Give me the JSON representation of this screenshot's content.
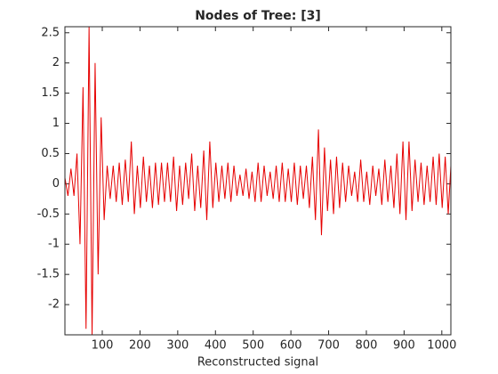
{
  "chart_data": {
    "type": "line",
    "title": "Nodes of Tree: [3]",
    "x_label": "Reconstructed signal",
    "color": "#e60000",
    "xlim": [
      1,
      1024
    ],
    "ylim": [
      -2.5,
      2.6
    ],
    "xticks": [
      100,
      200,
      300,
      400,
      500,
      600,
      700,
      800,
      900,
      1000
    ],
    "yticks": [
      -2,
      -1.5,
      -1,
      -0.5,
      0,
      0.5,
      1,
      1.5,
      2,
      2.5
    ],
    "grid": false,
    "x": [
      1,
      9,
      17,
      25,
      33,
      41,
      49,
      57,
      65,
      73,
      81,
      89,
      97,
      105,
      113,
      121,
      129,
      137,
      145,
      153,
      161,
      169,
      177,
      185,
      193,
      201,
      209,
      217,
      225,
      233,
      241,
      249,
      257,
      265,
      273,
      281,
      289,
      297,
      305,
      313,
      321,
      329,
      337,
      345,
      353,
      361,
      369,
      377,
      385,
      393,
      401,
      409,
      417,
      425,
      433,
      441,
      449,
      457,
      465,
      473,
      481,
      489,
      497,
      505,
      513,
      521,
      529,
      537,
      545,
      553,
      561,
      569,
      577,
      585,
      593,
      601,
      609,
      617,
      625,
      633,
      641,
      649,
      657,
      665,
      673,
      681,
      689,
      697,
      705,
      713,
      721,
      729,
      737,
      745,
      753,
      761,
      769,
      777,
      785,
      793,
      801,
      809,
      817,
      825,
      833,
      841,
      849,
      857,
      865,
      873,
      881,
      889,
      897,
      905,
      913,
      921,
      929,
      937,
      945,
      953,
      961,
      969,
      977,
      985,
      993,
      1001,
      1009,
      1017,
      1024
    ],
    "values": [
      0.1,
      -0.2,
      0.25,
      -0.2,
      0.5,
      -1.0,
      1.6,
      -2.4,
      2.6,
      -2.5,
      2.0,
      -1.5,
      1.1,
      -0.6,
      0.3,
      -0.25,
      0.3,
      -0.3,
      0.35,
      -0.35,
      0.4,
      -0.3,
      0.7,
      -0.5,
      0.3,
      -0.4,
      0.45,
      -0.3,
      0.3,
      -0.4,
      0.35,
      -0.35,
      0.35,
      -0.3,
      0.35,
      -0.3,
      0.45,
      -0.45,
      0.3,
      -0.35,
      0.35,
      -0.25,
      0.5,
      -0.45,
      0.3,
      -0.4,
      0.55,
      -0.6,
      0.7,
      -0.4,
      0.35,
      -0.3,
      0.3,
      -0.25,
      0.35,
      -0.3,
      0.3,
      -0.2,
      0.15,
      -0.2,
      0.25,
      -0.25,
      0.2,
      -0.3,
      0.35,
      -0.3,
      0.3,
      -0.2,
      0.2,
      -0.25,
      0.3,
      -0.3,
      0.35,
      -0.3,
      0.25,
      -0.3,
      0.35,
      -0.35,
      0.3,
      -0.25,
      0.3,
      -0.4,
      0.45,
      -0.6,
      0.9,
      -0.85,
      0.6,
      -0.45,
      0.4,
      -0.5,
      0.45,
      -0.4,
      0.35,
      -0.3,
      0.3,
      -0.2,
      0.2,
      -0.3,
      0.4,
      -0.3,
      0.2,
      -0.35,
      0.3,
      -0.2,
      0.25,
      -0.35,
      0.4,
      -0.3,
      0.3,
      -0.4,
      0.5,
      -0.5,
      0.7,
      -0.6,
      0.7,
      -0.45,
      0.4,
      -0.3,
      0.35,
      -0.35,
      0.3,
      -0.3,
      0.45,
      -0.35,
      0.5,
      -0.4,
      0.45,
      -0.5,
      0.3
    ]
  }
}
